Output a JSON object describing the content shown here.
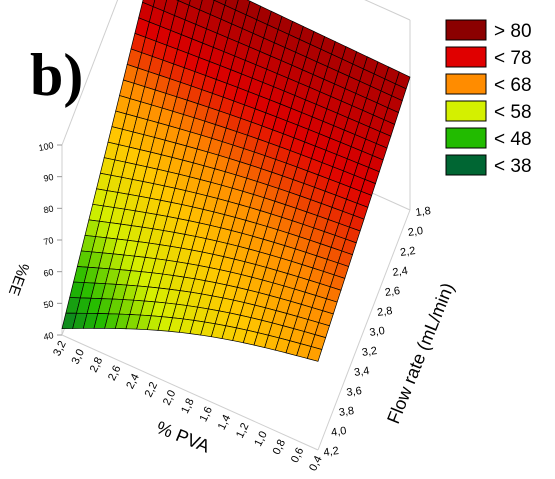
{
  "panel_label": "b)",
  "chart_data": {
    "type": "surface3d",
    "title": "",
    "x_label": "% PVA",
    "y_label": "Flow rate (mL/min)",
    "z_label": "%EE",
    "x_ticks": [
      "3,2",
      "3,0",
      "2,8",
      "2,6",
      "2,4",
      "2,2",
      "2,0",
      "1,8",
      "1,6",
      "1,4",
      "1,2",
      "1,0",
      "0,8",
      "0,6",
      "0,4"
    ],
    "y_ticks": [
      "1,8",
      "2,0",
      "2,2",
      "2,4",
      "2,6",
      "2,8",
      "3,0",
      "3,2",
      "3,4",
      "3,6",
      "3,8",
      "4,0",
      "4,2"
    ],
    "z_ticks": [
      "40",
      "50",
      "60",
      "70",
      "80",
      "90",
      "100"
    ],
    "x_range": [
      0.4,
      3.2
    ],
    "y_range": [
      1.8,
      4.2
    ],
    "z_range": [
      40,
      100
    ],
    "surface_corners": {
      "pva_3_2_flow_1_8": 84,
      "pva_0_4_flow_1_8": 82,
      "pva_3_2_flow_4_2": 42,
      "pva_0_4_flow_4_2": 68
    },
    "legend": [
      {
        "label": "> 80",
        "color": "#8b0000"
      },
      {
        "label": "< 78",
        "color": "#e00000"
      },
      {
        "label": "< 68",
        "color": "#ff8c00"
      },
      {
        "label": "< 58",
        "color": "#d4f000"
      },
      {
        "label": "< 48",
        "color": "#22bb00"
      },
      {
        "label": "< 38",
        "color": "#006633"
      }
    ],
    "legend_position": "top-right",
    "grid": false
  }
}
